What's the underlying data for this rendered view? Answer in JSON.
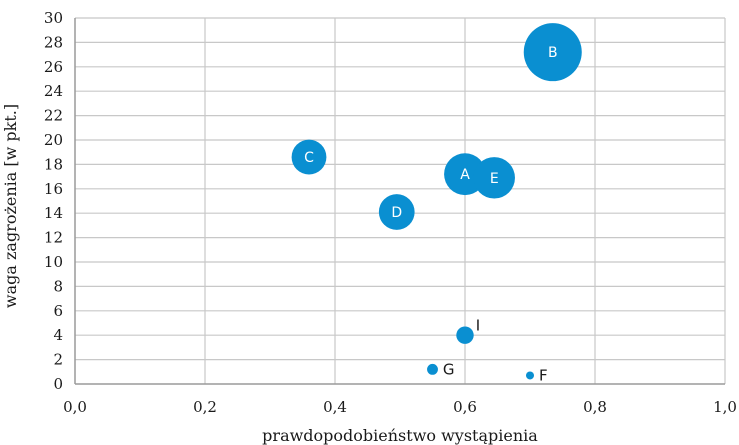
{
  "chart_data": {
    "type": "scatter",
    "subtype": "bubble",
    "xlabel": "prawdopodobieństwo wystąpienia",
    "ylabel": "waga zagrożenia [w pkt.]",
    "xlim": [
      0,
      1
    ],
    "ylim": [
      0,
      30
    ],
    "x_ticks": [
      "0,0",
      "0,2",
      "0,4",
      "0,6",
      "0,8",
      "1,0"
    ],
    "y_ticks": [
      "0",
      "2",
      "4",
      "6",
      "8",
      "10",
      "12",
      "14",
      "16",
      "18",
      "20",
      "22",
      "24",
      "26",
      "28",
      "30"
    ],
    "grid": true,
    "color": "#0a8fd1",
    "points": [
      {
        "label": "A",
        "x": 0.6,
        "y": 17.2,
        "size": 0.52
      },
      {
        "label": "B",
        "x": 0.735,
        "y": 27.2,
        "size": 1.0
      },
      {
        "label": "C",
        "x": 0.36,
        "y": 18.6,
        "size": 0.36
      },
      {
        "label": "D",
        "x": 0.495,
        "y": 14.1,
        "size": 0.38
      },
      {
        "label": "E",
        "x": 0.645,
        "y": 16.9,
        "size": 0.51
      },
      {
        "label": "F",
        "x": 0.7,
        "y": 0.7,
        "size": 0.015
      },
      {
        "label": "G",
        "x": 0.55,
        "y": 1.2,
        "size": 0.035
      },
      {
        "label": "I",
        "x": 0.6,
        "y": 4.0,
        "size": 0.09
      }
    ]
  }
}
